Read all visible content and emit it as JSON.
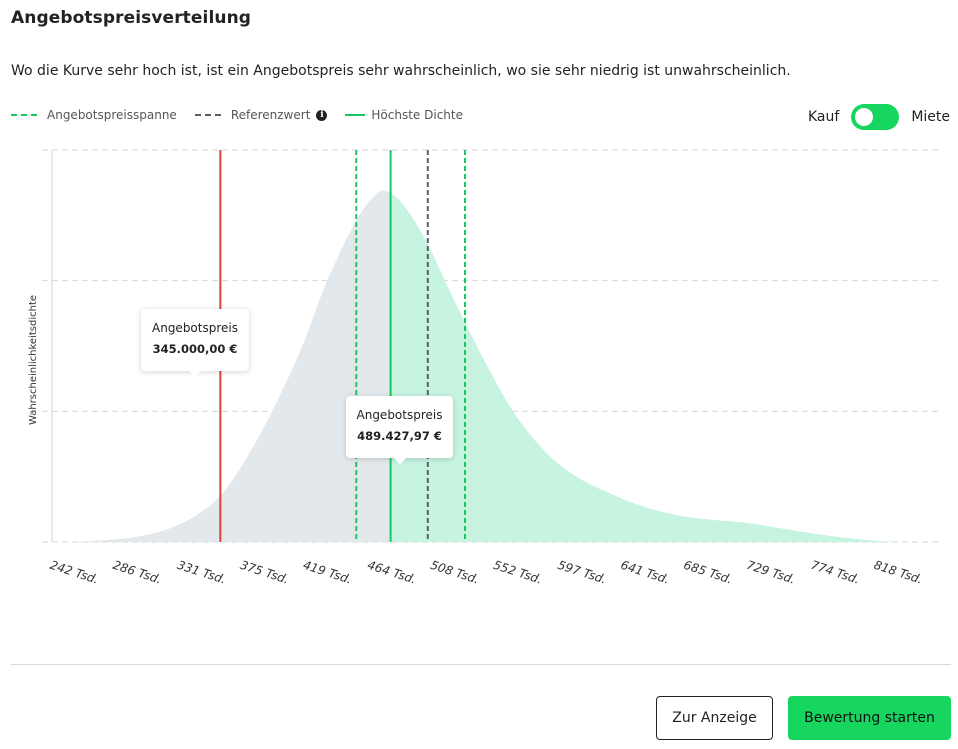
{
  "title": "Angebotspreisverteilung",
  "description": "Wo die Kurve sehr hoch ist, ist ein Angebotspreis sehr wahrscheinlich, wo sie sehr niedrig ist unwahrscheinlich.",
  "legend": {
    "range": "Angebotspreisspanne",
    "reference": "Referenzwert",
    "peak": "Höchste Dichte"
  },
  "toggle": {
    "left_label": "Kauf",
    "right_label": "Miete",
    "selected": "Kauf"
  },
  "buttons": {
    "view": "Zur Anzeige",
    "start": "Bewertung starten"
  },
  "tooltips": [
    {
      "label": "Angebotspreis",
      "value": "345.000,00 €"
    },
    {
      "label": "Angebotspreis",
      "value": "489.427,97 €"
    }
  ],
  "colors": {
    "accent": "#16d65f",
    "range_line": "#16c95c",
    "reference_line": "#5b6068",
    "price_line": "#e0403a",
    "area_left": "#e3e8ec",
    "area_right": "#c7f3e1"
  },
  "chart_data": {
    "type": "area",
    "ylabel": "Wahrscheinlichkeitsdichte",
    "xlabel": "",
    "x_ticks": [
      "242 Tsd.",
      "286 Tsd.",
      "331 Tsd.",
      "375 Tsd.",
      "419 Tsd.",
      "464 Tsd.",
      "508 Tsd.",
      "552 Tsd.",
      "597 Tsd.",
      "641 Tsd.",
      "685 Tsd.",
      "729 Tsd.",
      "774 Tsd.",
      "818 Tsd."
    ],
    "x_tick_values": [
      242,
      286,
      331,
      375,
      419,
      464,
      508,
      552,
      597,
      641,
      685,
      729,
      774,
      818
    ],
    "xlim": [
      242,
      818
    ],
    "ylim": [
      0,
      1
    ],
    "grid": true,
    "density_curve": [
      [
        242,
        0.0
      ],
      [
        262,
        0.004
      ],
      [
        286,
        0.013
      ],
      [
        310,
        0.035
      ],
      [
        331,
        0.075
      ],
      [
        350,
        0.14
      ],
      [
        375,
        0.29
      ],
      [
        400,
        0.48
      ],
      [
        419,
        0.66
      ],
      [
        440,
        0.82
      ],
      [
        455,
        0.89
      ],
      [
        464,
        0.89
      ],
      [
        475,
        0.85
      ],
      [
        490,
        0.76
      ],
      [
        508,
        0.62
      ],
      [
        530,
        0.46
      ],
      [
        552,
        0.32
      ],
      [
        575,
        0.22
      ],
      [
        597,
        0.16
      ],
      [
        620,
        0.12
      ],
      [
        641,
        0.09
      ],
      [
        665,
        0.068
      ],
      [
        685,
        0.058
      ],
      [
        710,
        0.05
      ],
      [
        729,
        0.04
      ],
      [
        750,
        0.027
      ],
      [
        774,
        0.014
      ],
      [
        800,
        0.004
      ],
      [
        818,
        0.0
      ]
    ],
    "peak_x": 464,
    "range": [
      440,
      516
    ],
    "reference_x": 490,
    "offer_prices": [
      345,
      489.43
    ]
  }
}
